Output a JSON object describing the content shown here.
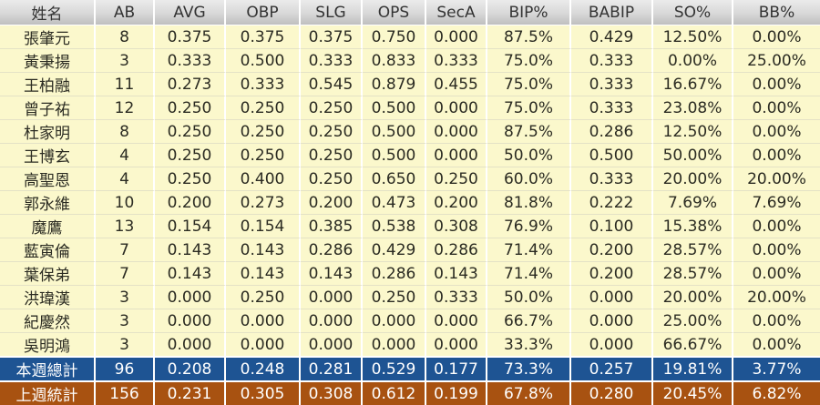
{
  "table": {
    "columns": [
      "姓名",
      "AB",
      "AVG",
      "OBP",
      "SLG",
      "OPS",
      "SecA",
      "BIP%",
      "BABIP",
      "SO%",
      "BB%"
    ],
    "column_keys": [
      "name",
      "ab",
      "avg",
      "obp",
      "slg",
      "ops",
      "seca",
      "bip-pct",
      "babip",
      "so-pct",
      "bb-pct"
    ],
    "rows": [
      {
        "name": "張肇元",
        "values": [
          "8",
          "0.375",
          "0.375",
          "0.375",
          "0.750",
          "0.000",
          "87.5%",
          "0.429",
          "12.50%",
          "0.00%"
        ]
      },
      {
        "name": "黃秉揚",
        "values": [
          "3",
          "0.333",
          "0.500",
          "0.333",
          "0.833",
          "0.333",
          "75.0%",
          "0.333",
          "0.00%",
          "25.00%"
        ]
      },
      {
        "name": "王柏融",
        "values": [
          "11",
          "0.273",
          "0.333",
          "0.545",
          "0.879",
          "0.455",
          "75.0%",
          "0.333",
          "16.67%",
          "0.00%"
        ]
      },
      {
        "name": "曾子祐",
        "values": [
          "12",
          "0.250",
          "0.250",
          "0.250",
          "0.500",
          "0.000",
          "75.0%",
          "0.333",
          "23.08%",
          "0.00%"
        ]
      },
      {
        "name": "杜家明",
        "values": [
          "8",
          "0.250",
          "0.250",
          "0.250",
          "0.500",
          "0.000",
          "87.5%",
          "0.286",
          "12.50%",
          "0.00%"
        ]
      },
      {
        "name": "王博玄",
        "values": [
          "4",
          "0.250",
          "0.250",
          "0.250",
          "0.500",
          "0.000",
          "50.0%",
          "0.500",
          "50.00%",
          "0.00%"
        ]
      },
      {
        "name": "高聖恩",
        "values": [
          "4",
          "0.250",
          "0.400",
          "0.250",
          "0.650",
          "0.250",
          "60.0%",
          "0.333",
          "20.00%",
          "20.00%"
        ]
      },
      {
        "name": "郭永維",
        "values": [
          "10",
          "0.200",
          "0.273",
          "0.200",
          "0.473",
          "0.200",
          "81.8%",
          "0.222",
          "7.69%",
          "7.69%"
        ]
      },
      {
        "name": "魔鷹",
        "values": [
          "13",
          "0.154",
          "0.154",
          "0.385",
          "0.538",
          "0.308",
          "76.9%",
          "0.100",
          "15.38%",
          "0.00%"
        ]
      },
      {
        "name": "藍寅倫",
        "values": [
          "7",
          "0.143",
          "0.143",
          "0.286",
          "0.429",
          "0.286",
          "71.4%",
          "0.200",
          "28.57%",
          "0.00%"
        ]
      },
      {
        "name": "葉保弟",
        "values": [
          "7",
          "0.143",
          "0.143",
          "0.143",
          "0.286",
          "0.143",
          "71.4%",
          "0.200",
          "28.57%",
          "0.00%"
        ]
      },
      {
        "name": "洪瑋漢",
        "values": [
          "3",
          "0.000",
          "0.250",
          "0.000",
          "0.250",
          "0.333",
          "50.0%",
          "0.000",
          "20.00%",
          "20.00%"
        ]
      },
      {
        "name": "紀慶然",
        "values": [
          "3",
          "0.000",
          "0.000",
          "0.000",
          "0.000",
          "0.000",
          "66.7%",
          "0.000",
          "25.00%",
          "0.00%"
        ]
      },
      {
        "name": "吳明鴻",
        "values": [
          "3",
          "0.000",
          "0.000",
          "0.000",
          "0.000",
          "0.000",
          "33.3%",
          "0.000",
          "66.67%",
          "0.00%"
        ]
      }
    ],
    "totals": [
      {
        "key": "this-week",
        "label": "本週總計",
        "values": [
          "96",
          "0.208",
          "0.248",
          "0.281",
          "0.529",
          "0.177",
          "73.3%",
          "0.257",
          "19.81%",
          "3.77%"
        ]
      },
      {
        "key": "last-week",
        "label": "上週統計",
        "values": [
          "156",
          "0.231",
          "0.305",
          "0.308",
          "0.612",
          "0.199",
          "67.8%",
          "0.280",
          "20.45%",
          "6.82%"
        ]
      }
    ]
  },
  "colors": {
    "row_bg": "#FBF8CC",
    "this_week_bg": "#1E5493",
    "last_week_bg": "#A85211",
    "header_top": "#EBEBEB",
    "header_bottom": "#BFBFBF"
  }
}
